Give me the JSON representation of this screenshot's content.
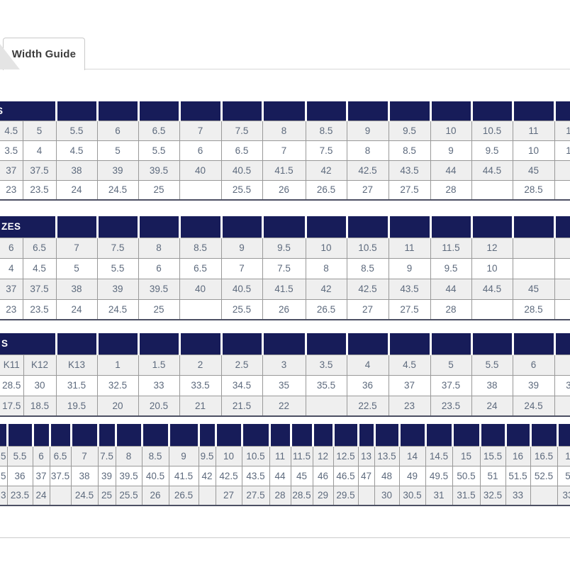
{
  "tab": {
    "label": "Width Guide"
  },
  "colors": {
    "header_navy": "#171C59",
    "row_alt_gray": "#EFEFEF",
    "cell_text": "#5D6A7D",
    "cell_border": "#999999",
    "tab_text": "#3C3C3C"
  },
  "tables": [
    {
      "id": "size-table-1",
      "title_fragment": "S",
      "title_clipped": true,
      "rows": [
        {
          "name": "us-row",
          "cells": [
            "4.5",
            "5",
            "5.5",
            "6",
            "6.5",
            "7",
            "7.5",
            "8",
            "8.5",
            "9",
            "9.5",
            "10",
            "10.5",
            "11",
            "1"
          ]
        },
        {
          "name": "uk-row",
          "cells": [
            "3.5",
            "4",
            "4.5",
            "5",
            "5.5",
            "6",
            "6.5",
            "7",
            "7.5",
            "8",
            "8.5",
            "9",
            "9.5",
            "10",
            "1"
          ]
        },
        {
          "name": "eu-row",
          "cells": [
            "37",
            "37.5",
            "38",
            "39",
            "39.5",
            "40",
            "40.5",
            "41.5",
            "42",
            "42.5",
            "43.5",
            "44",
            "44.5",
            "45",
            ""
          ]
        },
        {
          "name": "cm-row",
          "cells": [
            "23",
            "23.5",
            "24",
            "24.5",
            "25",
            "",
            "25.5",
            "26",
            "26.5",
            "27",
            "27.5",
            "28",
            "",
            "28.5",
            ""
          ]
        }
      ]
    },
    {
      "id": "size-table-2",
      "title_fragment": "ZES",
      "title_clipped": false,
      "rows": [
        {
          "name": "us-row",
          "cells": [
            "6",
            "6.5",
            "7",
            "7.5",
            "8",
            "8.5",
            "9",
            "9.5",
            "10",
            "10.5",
            "11",
            "11.5",
            "12",
            "",
            ""
          ]
        },
        {
          "name": "uk-row",
          "cells": [
            "4",
            "4.5",
            "5",
            "5.5",
            "6",
            "6.5",
            "7",
            "7.5",
            "8",
            "8.5",
            "9",
            "9.5",
            "10",
            "",
            ""
          ]
        },
        {
          "name": "eu-row",
          "cells": [
            "37",
            "37.5",
            "38",
            "39",
            "39.5",
            "40",
            "40.5",
            "41.5",
            "42",
            "42.5",
            "43.5",
            "44",
            "44.5",
            "45",
            ""
          ]
        },
        {
          "name": "cm-row",
          "cells": [
            "23",
            "23.5",
            "24",
            "24.5",
            "25",
            "",
            "25.5",
            "26",
            "26.5",
            "27",
            "27.5",
            "28",
            "",
            "28.5",
            ""
          ]
        }
      ]
    },
    {
      "id": "size-table-3",
      "title_fragment": "S",
      "title_clipped": false,
      "rows": [
        {
          "name": "us-row",
          "cells": [
            "K11",
            "K12",
            "K13",
            "1",
            "1.5",
            "2",
            "2.5",
            "3",
            "3.5",
            "4",
            "4.5",
            "5",
            "5.5",
            "6",
            ""
          ]
        },
        {
          "name": "eu-row",
          "cells": [
            "28.5",
            "30",
            "31.5",
            "32.5",
            "33",
            "33.5",
            "34.5",
            "35",
            "35.5",
            "36",
            "37",
            "37.5",
            "38",
            "39",
            "3"
          ]
        },
        {
          "name": "cm-row",
          "cells": [
            "17.5",
            "18.5",
            "19.5",
            "20",
            "20.5",
            "21",
            "21.5",
            "22",
            "",
            "22.5",
            "23",
            "23.5",
            "24",
            "24.5",
            ""
          ]
        }
      ]
    },
    {
      "id": "size-table-4",
      "title_fragment": "",
      "title_clipped": false,
      "rows": [
        {
          "name": "us-row",
          "cells": [
            "5",
            "5.5",
            "6",
            "6.5",
            "7",
            "7.5",
            "8",
            "8.5",
            "9",
            "9.5",
            "10",
            "10.5",
            "11",
            "11.5",
            "12",
            "12.5",
            "13",
            "13.5",
            "14",
            "14.5",
            "15",
            "15.5",
            "16",
            "16.5",
            "1"
          ]
        },
        {
          "name": "eu-row",
          "cells": [
            "5",
            "36",
            "37",
            "37.5",
            "38",
            "39",
            "39.5",
            "40.5",
            "41.5",
            "42",
            "42.5",
            "43.5",
            "44",
            "45",
            "46",
            "46.5",
            "47",
            "48",
            "49",
            "49.5",
            "50.5",
            "51",
            "51.5",
            "52.5",
            "5"
          ]
        },
        {
          "name": "cm-row",
          "cells": [
            "3",
            "23.5",
            "24",
            "",
            "24.5",
            "25",
            "25.5",
            "26",
            "26.5",
            "",
            "27",
            "27.5",
            "28",
            "28.5",
            "29",
            "29.5",
            "",
            "30",
            "30.5",
            "31",
            "31.5",
            "32.5",
            "33",
            "",
            "33"
          ]
        }
      ]
    }
  ]
}
